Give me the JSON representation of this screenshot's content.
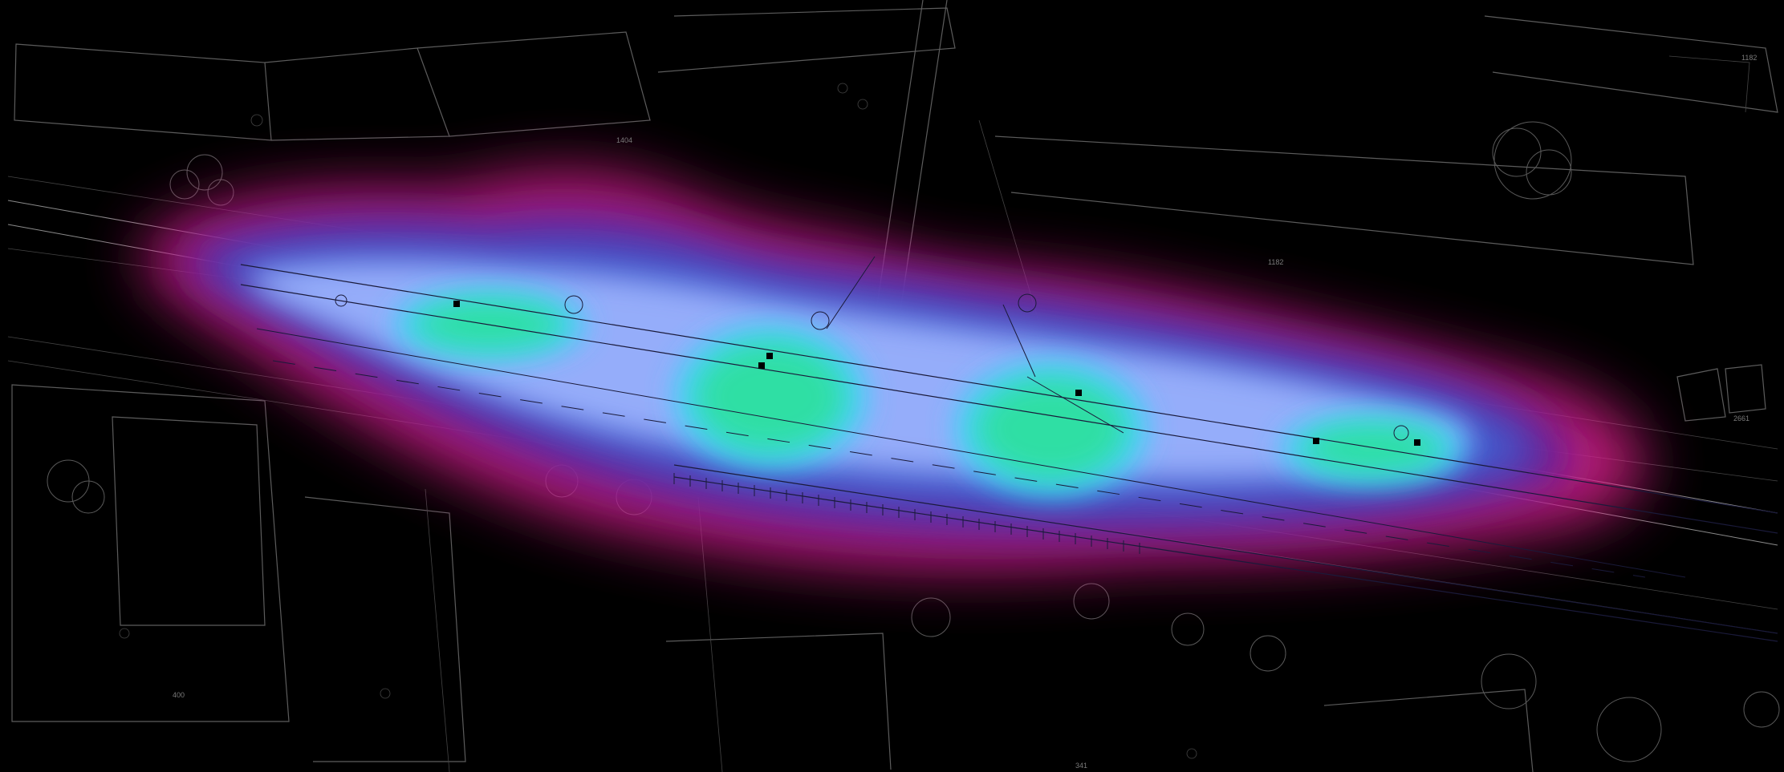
{
  "map": {
    "colors": {
      "background": "#000000",
      "linework": "#5c5c5c",
      "heat_outer": "#e0208c",
      "heat_mid": "#4a6ad8",
      "heat_inner": "#b0c8ff",
      "heat_peak": "#2ee0a0"
    },
    "parcel_labels": [
      {
        "name": "parcel-label-1",
        "text": "1404"
      },
      {
        "name": "parcel-label-2",
        "text": "1182"
      },
      {
        "name": "parcel-label-3",
        "text": "1182"
      },
      {
        "name": "parcel-label-4",
        "text": "2661"
      },
      {
        "name": "parcel-label-5",
        "text": "400"
      },
      {
        "name": "parcel-label-6",
        "text": "341"
      }
    ],
    "icons": {
      "tree": "tree-icon",
      "light_pole": "light-pole-icon",
      "manhole": "manhole-icon"
    }
  }
}
